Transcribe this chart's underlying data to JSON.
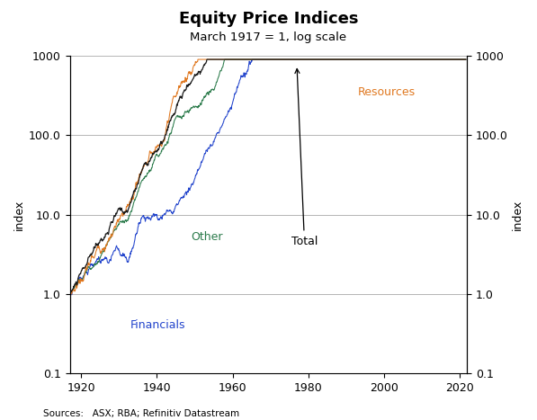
{
  "title": "Equity Price Indices",
  "subtitle": "March 1917 = 1, log scale",
  "ylabel_left": "index",
  "ylabel_right": "index",
  "source": "Sources:   ASX; RBA; Refinitiv Datastream",
  "xlim": [
    1917,
    2022
  ],
  "ylim_log": [
    0.1,
    1000
  ],
  "yticks": [
    0.1,
    1.0,
    10.0,
    100.0,
    1000.0
  ],
  "ytick_labels": [
    "0.1",
    "1.0",
    "10.0",
    "100.0",
    "1000"
  ],
  "xticks": [
    1920,
    1940,
    1960,
    1980,
    2000,
    2020
  ],
  "colors": {
    "total": "#1a1a1a",
    "resources": "#e07820",
    "other": "#2a7a4a",
    "financials": "#2244cc"
  },
  "grid_color": "#aaaaaa",
  "bg_color": "#ffffff"
}
